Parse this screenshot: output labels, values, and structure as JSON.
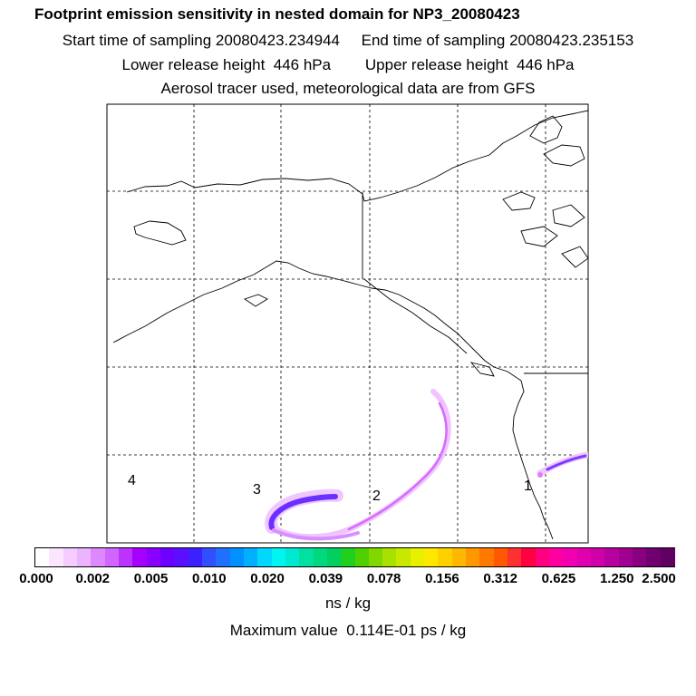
{
  "header": {
    "title": "Footprint emission sensitivity in nested domain for NP3_20080423",
    "sampling_line": "Start time of sampling 20080423.234944     End time of sampling 20080423.235153",
    "release_line": "Lower release height  446 hPa        Upper release height  446 hPa",
    "tracer_line": "Aerosol tracer used, meteorological data are from GFS"
  },
  "map": {
    "region_labels": [
      "4",
      "3",
      "2",
      "1"
    ]
  },
  "colorbar": {
    "colors": [
      "#ffffff",
      "#fce6ff",
      "#f5ccff",
      "#ecb3ff",
      "#dd88ff",
      "#d066ff",
      "#bb33ff",
      "#a500ff",
      "#8a00ff",
      "#6e00ff",
      "#5a10ff",
      "#3d20ff",
      "#3050ff",
      "#2070ff",
      "#0090ff",
      "#00b0ff",
      "#00d8ff",
      "#00f5f0",
      "#00e8d0",
      "#00e0a0",
      "#00d880",
      "#00d060",
      "#20d020",
      "#50d000",
      "#80d800",
      "#a8e000",
      "#c8e800",
      "#e8f000",
      "#ffe800",
      "#ffd000",
      "#ffb800",
      "#ff9800",
      "#ff7800",
      "#ff5800",
      "#ff3030",
      "#ff0040",
      "#ff0080",
      "#ff00a0",
      "#f000b0",
      "#e000b0",
      "#d000a8",
      "#b800a0",
      "#a00090",
      "#880080",
      "#700070",
      "#600060"
    ],
    "tick_labels": [
      "0.000",
      "0.002",
      "0.005",
      "0.010",
      "0.020",
      "0.039",
      "0.078",
      "0.156",
      "0.312",
      "0.625",
      "1.250",
      "2.500"
    ],
    "units": "ns / kg"
  },
  "footer": {
    "max_value_text": "Maximum value  0.114E-01 ps / kg"
  }
}
